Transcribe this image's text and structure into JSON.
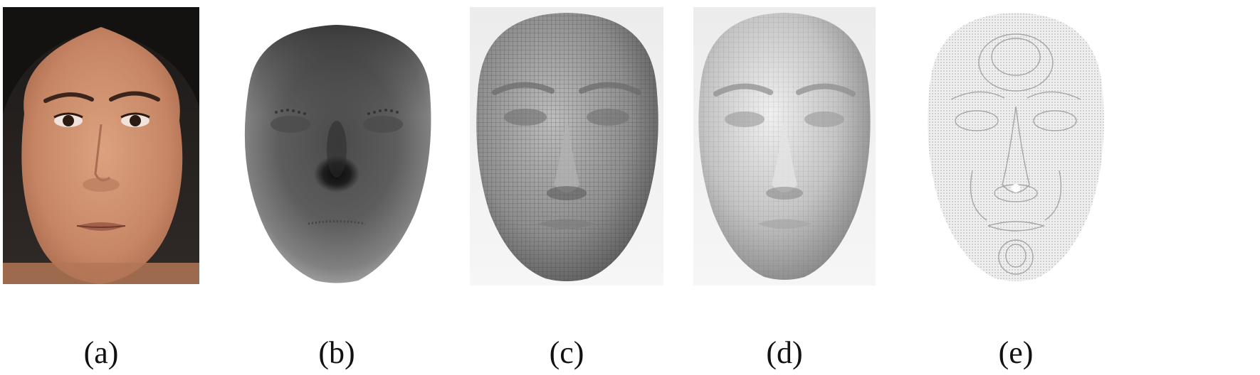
{
  "panels": [
    {
      "id": "a",
      "label": "(a)",
      "content": "photograph"
    },
    {
      "id": "b",
      "label": "(b)",
      "content": "depth-map"
    },
    {
      "id": "c",
      "label": "(c)",
      "content": "wireframe-mesh"
    },
    {
      "id": "d",
      "label": "(d)",
      "content": "shaded-mesh"
    },
    {
      "id": "e",
      "label": "(e)",
      "content": "contour-render"
    }
  ],
  "colors": {
    "background": "#ffffff",
    "caption": "#111111",
    "skin": "#c98c6c",
    "hair": "#161210",
    "depth_dark": "#1c1c1c",
    "mesh_gray": "#8a8a8a",
    "shade_light": "#d2d2d2",
    "contour_line": "#9c9c9c"
  }
}
